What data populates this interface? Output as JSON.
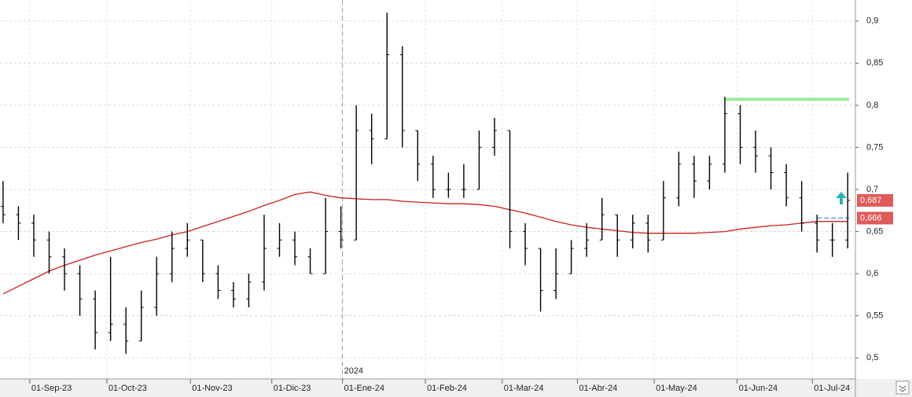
{
  "chart_data": {
    "type": "ohlc",
    "xlim": [
      -0.2,
      55.5
    ],
    "ylim": [
      0.475,
      0.925
    ],
    "grid": true,
    "yticks": [
      {
        "value": 0.5,
        "label": "0,5"
      },
      {
        "value": 0.55,
        "label": "0,55"
      },
      {
        "value": 0.6,
        "label": "0,6"
      },
      {
        "value": 0.65,
        "label": "0,65"
      },
      {
        "value": 0.7,
        "label": "0,7"
      },
      {
        "value": 0.75,
        "label": "0,75"
      },
      {
        "value": 0.8,
        "label": "0,8"
      },
      {
        "value": 0.85,
        "label": "0,85"
      },
      {
        "value": 0.9,
        "label": "0,9"
      }
    ],
    "xticks": [
      {
        "value": 1.74,
        "label": "01-Sep-23"
      },
      {
        "value": 6.76,
        "label": "01-Oct-23"
      },
      {
        "value": 12.2,
        "label": "01-Nov-23"
      },
      {
        "value": 17.5,
        "label": "01-Dic-23"
      },
      {
        "value": 22.1,
        "label": "01-Ene-24"
      },
      {
        "value": 27.5,
        "label": "01-Feb-24"
      },
      {
        "value": 32.5,
        "label": "01-Mar-24"
      },
      {
        "value": 37.4,
        "label": "01-Abr-24"
      },
      {
        "value": 42.4,
        "label": "01-May-24"
      },
      {
        "value": 47.8,
        "label": "01-Jun-24"
      },
      {
        "value": 52.7,
        "label": "01-Jul-24"
      }
    ],
    "year_marker": {
      "x": 22.1,
      "label": "2024"
    },
    "ohlc": {
      "color": "#000000",
      "values": [
        [
          0.68,
          0.71,
          0.66,
          0.67
        ],
        [
          0.67,
          0.68,
          0.64,
          0.66
        ],
        [
          0.66,
          0.67,
          0.62,
          0.64
        ],
        [
          0.64,
          0.65,
          0.6,
          0.62
        ],
        [
          0.62,
          0.63,
          0.58,
          0.6
        ],
        [
          0.6,
          0.61,
          0.55,
          0.57
        ],
        [
          0.57,
          0.58,
          0.51,
          0.53
        ],
        [
          0.53,
          0.62,
          0.52,
          0.54
        ],
        [
          0.54,
          0.56,
          0.505,
          0.52
        ],
        [
          0.52,
          0.58,
          0.52,
          0.56
        ],
        [
          0.56,
          0.62,
          0.55,
          0.6
        ],
        [
          0.6,
          0.65,
          0.59,
          0.63
        ],
        [
          0.63,
          0.66,
          0.62,
          0.64
        ],
        [
          0.64,
          0.64,
          0.59,
          0.6
        ],
        [
          0.6,
          0.61,
          0.57,
          0.58
        ],
        [
          0.58,
          0.59,
          0.56,
          0.57
        ],
        [
          0.57,
          0.6,
          0.56,
          0.59
        ],
        [
          0.59,
          0.67,
          0.58,
          0.63
        ],
        [
          0.63,
          0.66,
          0.62,
          0.64
        ],
        [
          0.64,
          0.65,
          0.61,
          0.62
        ],
        [
          0.62,
          0.63,
          0.6,
          0.6
        ],
        [
          0.6,
          0.69,
          0.6,
          0.65
        ],
        [
          0.65,
          0.68,
          0.63,
          0.64
        ],
        [
          0.64,
          0.8,
          0.64,
          0.77
        ],
        [
          0.77,
          0.79,
          0.73,
          0.76
        ],
        [
          0.76,
          0.91,
          0.76,
          0.86
        ],
        [
          0.86,
          0.87,
          0.75,
          0.77
        ],
        [
          0.77,
          0.77,
          0.71,
          0.73
        ],
        [
          0.73,
          0.74,
          0.69,
          0.7
        ],
        [
          0.7,
          0.72,
          0.69,
          0.7
        ],
        [
          0.7,
          0.73,
          0.69,
          0.7
        ],
        [
          0.7,
          0.77,
          0.7,
          0.75
        ],
        [
          0.75,
          0.785,
          0.74,
          0.77
        ],
        [
          0.77,
          0.77,
          0.63,
          0.65
        ],
        [
          0.65,
          0.66,
          0.61,
          0.63
        ],
        [
          0.63,
          0.63,
          0.555,
          0.58
        ],
        [
          0.58,
          0.63,
          0.57,
          0.6
        ],
        [
          0.6,
          0.64,
          0.6,
          0.63
        ],
        [
          0.63,
          0.66,
          0.62,
          0.64
        ],
        [
          0.64,
          0.69,
          0.64,
          0.67
        ],
        [
          0.67,
          0.67,
          0.62,
          0.64
        ],
        [
          0.64,
          0.67,
          0.63,
          0.66
        ],
        [
          0.66,
          0.67,
          0.625,
          0.64
        ],
        [
          0.64,
          0.71,
          0.64,
          0.69
        ],
        [
          0.69,
          0.745,
          0.68,
          0.73
        ],
        [
          0.73,
          0.74,
          0.69,
          0.71
        ],
        [
          0.71,
          0.74,
          0.7,
          0.73
        ],
        [
          0.73,
          0.81,
          0.72,
          0.79
        ],
        [
          0.79,
          0.8,
          0.73,
          0.75
        ],
        [
          0.75,
          0.77,
          0.72,
          0.74
        ],
        [
          0.74,
          0.75,
          0.7,
          0.72
        ],
        [
          0.72,
          0.73,
          0.68,
          0.69
        ],
        [
          0.69,
          0.71,
          0.65,
          0.66
        ],
        [
          0.66,
          0.67,
          0.625,
          0.64
        ],
        [
          0.64,
          0.66,
          0.62,
          0.64
        ],
        [
          0.64,
          0.72,
          0.63,
          0.687
        ]
      ]
    },
    "moving_average": {
      "color": "#cc1f1f",
      "values": [
        0.576,
        0.585,
        0.594,
        0.603,
        0.61,
        0.616,
        0.622,
        0.627,
        0.632,
        0.637,
        0.641,
        0.646,
        0.65,
        0.656,
        0.662,
        0.668,
        0.674,
        0.681,
        0.687,
        0.694,
        0.697,
        0.693,
        0.69,
        0.689,
        0.688,
        0.688,
        0.686,
        0.685,
        0.684,
        0.683,
        0.683,
        0.682,
        0.68,
        0.676,
        0.672,
        0.667,
        0.662,
        0.658,
        0.655,
        0.653,
        0.651,
        0.649,
        0.648,
        0.648,
        0.648,
        0.648,
        0.649,
        0.65,
        0.653,
        0.655,
        0.657,
        0.658,
        0.66,
        0.662,
        0.662,
        0.662
      ]
    },
    "levels": [
      {
        "value": 0.807,
        "start": 47,
        "color": "#9ee89e"
      },
      {
        "value": 0.666,
        "start": 53,
        "color": "#8ab4e8"
      }
    ],
    "price_labels": [
      {
        "value": 0.687,
        "label": "0,687",
        "color": "#e05a5a"
      },
      {
        "value": 0.666,
        "label": "0,666",
        "color": "#e05a5a"
      }
    ]
  }
}
